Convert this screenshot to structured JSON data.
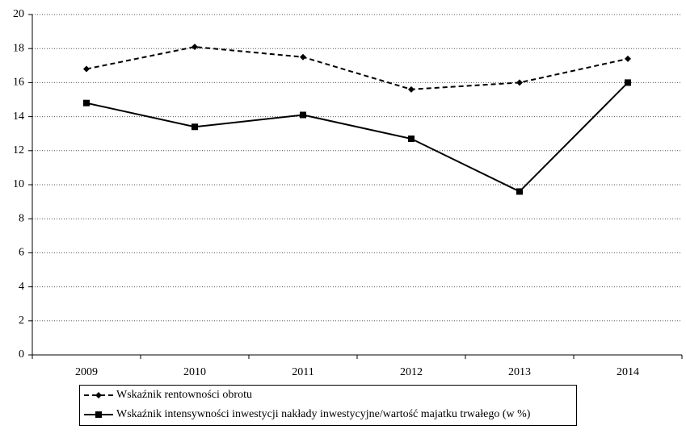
{
  "chart_data": {
    "type": "line",
    "categories": [
      "2009",
      "2010",
      "2011",
      "2012",
      "2013",
      "2014"
    ],
    "series": [
      {
        "name": "Wskaźnik rentowności obrotu",
        "color": "#000000",
        "linestyle": "dashed",
        "marker": "diamond",
        "values": [
          16.8,
          18.1,
          17.5,
          15.6,
          16.0,
          17.4
        ]
      },
      {
        "name": "Wskaźnik intensywności inwestycji nakłady inwestycyjne/wartość majatku trwałego (w %)",
        "color": "#000000",
        "linestyle": "solid",
        "marker": "square",
        "values": [
          14.8,
          13.4,
          14.1,
          12.7,
          9.6,
          16.0
        ]
      }
    ],
    "ylim": [
      0,
      20
    ],
    "yticks": [
      0,
      2,
      4,
      6,
      8,
      10,
      12,
      14,
      16,
      18,
      20
    ],
    "grid": true,
    "legend": "bottom"
  }
}
